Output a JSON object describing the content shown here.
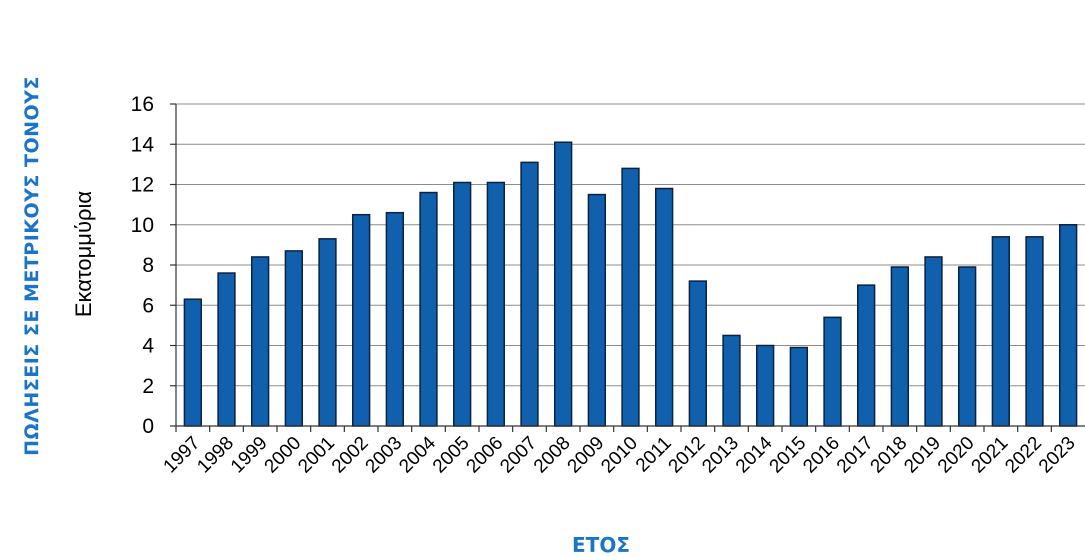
{
  "page": {
    "outer_ylabel": "ΠΩΛΗΣΕΙΣ ΣΕ ΜΕΤΡΙΚΟΥΣ ΤΟΝΟΥΣ",
    "outer_xlabel": "ΕΤΟΣ"
  },
  "chart_data": {
    "type": "bar",
    "title": "",
    "xlabel": "",
    "ylabel": "Εκατομμύρια",
    "ylim": [
      0,
      16
    ],
    "yticks": [
      0,
      2,
      4,
      6,
      8,
      10,
      12,
      14,
      16
    ],
    "grid": true,
    "categories": [
      "1997",
      "1998",
      "1999",
      "2000",
      "2001",
      "2002",
      "2003",
      "2004",
      "2005",
      "2006",
      "2007",
      "2008",
      "2009",
      "2010",
      "2011",
      "2012",
      "2013",
      "2014",
      "2015",
      "2016",
      "2017",
      "2018",
      "2019",
      "2020",
      "2021",
      "2022",
      "2023"
    ],
    "values": [
      6.3,
      7.6,
      8.4,
      8.7,
      9.3,
      10.5,
      10.6,
      11.6,
      12.1,
      12.1,
      13.1,
      14.1,
      11.5,
      12.8,
      11.8,
      7.2,
      4.5,
      4.0,
      3.9,
      5.4,
      7.0,
      7.9,
      8.4,
      7.9,
      9.4,
      9.4,
      10.0
    ],
    "colors": {
      "bar_fill": "#1060ad",
      "bar_edge": "#0a2342",
      "outer_label": "#1a75c9"
    }
  }
}
